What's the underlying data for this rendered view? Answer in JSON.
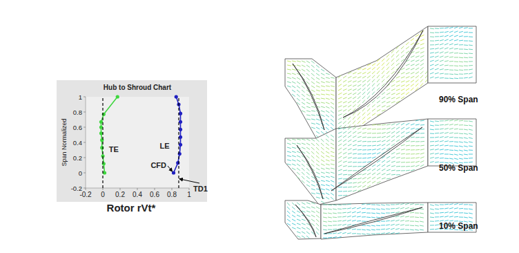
{
  "chart_data": {
    "type": "line",
    "title": "Hub to Shroud Chart",
    "x_label": "Rotor rVt*",
    "y_label": "Span Normalized",
    "xlim": [
      -0.2,
      1
    ],
    "ylim": [
      -0.2,
      1
    ],
    "xticks": [
      -0.2,
      0,
      0.2,
      0.4,
      0.6,
      0.8,
      1
    ],
    "yticks": [
      -0.2,
      0,
      0.2,
      0.4,
      0.6,
      0.8,
      1
    ],
    "grid": false,
    "series": [
      {
        "name": "TE",
        "color": "#3ed63e",
        "marker": "circle",
        "line_style": "solid",
        "x": [
          0.02,
          0.01,
          0.0,
          -0.01,
          -0.01,
          -0.02,
          -0.02,
          -0.02,
          0.01,
          0.17
        ],
        "values": [
          0.0,
          0.12,
          0.22,
          0.33,
          0.43,
          0.52,
          0.6,
          0.67,
          0.77,
          1.0
        ]
      },
      {
        "name": "LE",
        "color": "#2020c0",
        "marker": "circle",
        "line_style": "solid",
        "x": [
          0.82,
          0.87,
          0.89,
          0.9,
          0.9,
          0.9,
          0.9,
          0.9,
          0.88,
          0.85
        ],
        "values": [
          0.0,
          0.13,
          0.25,
          0.37,
          0.47,
          0.57,
          0.67,
          0.78,
          0.9,
          1.0
        ]
      },
      {
        "color": "#000000",
        "marker": "none",
        "line_style": "dashed",
        "x": [
          0,
          0
        ],
        "values": [
          -0.2,
          1
        ]
      },
      {
        "color": "#000000",
        "marker": "none",
        "line_style": "dashed",
        "x": [
          0.88,
          0.88
        ],
        "values": [
          -0.2,
          1
        ]
      }
    ],
    "annotations": [
      {
        "text": "CFD"
      },
      {
        "text": "TD1"
      }
    ]
  },
  "diagram": {
    "labels": [
      "90% Span",
      "50% Span",
      "10% Span"
    ]
  }
}
